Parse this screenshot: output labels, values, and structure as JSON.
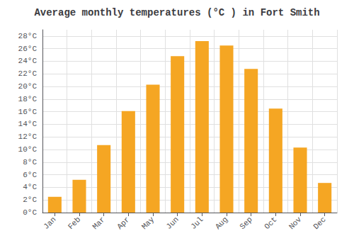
{
  "chart_data": {
    "type": "bar",
    "title": "Average monthly temperatures (°C ) in Fort Smith",
    "categories": [
      "Jan",
      "Feb",
      "Mar",
      "Apr",
      "May",
      "Jun",
      "Jul",
      "Aug",
      "Sep",
      "Oct",
      "Nov",
      "Dec"
    ],
    "values": [
      2.5,
      5.2,
      10.7,
      16.1,
      20.3,
      24.8,
      27.2,
      26.5,
      22.8,
      16.5,
      10.3,
      4.7
    ],
    "color": "#F5A623",
    "ylim": [
      0,
      29
    ],
    "yticks": [
      {
        "value": 0,
        "label": "0°C"
      },
      {
        "value": 2,
        "label": "2°C"
      },
      {
        "value": 4,
        "label": "4°C"
      },
      {
        "value": 6,
        "label": "6°C"
      },
      {
        "value": 8,
        "label": "8°C"
      },
      {
        "value": 10,
        "label": "10°C"
      },
      {
        "value": 12,
        "label": "12°C"
      },
      {
        "value": 14,
        "label": "14°C"
      },
      {
        "value": 16,
        "label": "16°C"
      },
      {
        "value": 18,
        "label": "18°C"
      },
      {
        "value": 20,
        "label": "20°C"
      },
      {
        "value": 22,
        "label": "22°C"
      },
      {
        "value": 24,
        "label": "24°C"
      },
      {
        "value": 26,
        "label": "26°C"
      },
      {
        "value": 28,
        "label": "28°C"
      }
    ],
    "grid": true
  }
}
